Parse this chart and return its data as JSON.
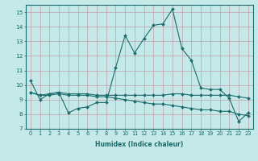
{
  "xlabel": "Humidex (Indice chaleur)",
  "background_color": "#c5e8e8",
  "grid_color": "#c0a0a8",
  "line_color": "#1a6b6b",
  "xlim": [
    -0.5,
    23.5
  ],
  "ylim": [
    7,
    15.5
  ],
  "yticks": [
    7,
    8,
    9,
    10,
    11,
    12,
    13,
    14,
    15
  ],
  "xticks": [
    0,
    1,
    2,
    3,
    4,
    5,
    6,
    7,
    8,
    9,
    10,
    11,
    12,
    13,
    14,
    15,
    16,
    17,
    18,
    19,
    20,
    21,
    22,
    23
  ],
  "series1_x": [
    0,
    1,
    2,
    3,
    4,
    5,
    6,
    7,
    8,
    9,
    10,
    11,
    12,
    13,
    14,
    15,
    16,
    17,
    18,
    19,
    20,
    21,
    22,
    23
  ],
  "series1_y": [
    10.3,
    9.0,
    9.4,
    9.5,
    8.1,
    8.4,
    8.5,
    8.8,
    8.8,
    11.2,
    13.4,
    12.2,
    13.2,
    14.1,
    14.2,
    15.2,
    12.5,
    11.7,
    9.8,
    9.7,
    9.7,
    9.1,
    7.5,
    8.1
  ],
  "series2_x": [
    0,
    1,
    2,
    3,
    4,
    5,
    6,
    7,
    8,
    9,
    10,
    11,
    12,
    13,
    14,
    15,
    16,
    17,
    18,
    19,
    20,
    21,
    22,
    23
  ],
  "series2_y": [
    9.5,
    9.3,
    9.4,
    9.5,
    9.4,
    9.4,
    9.4,
    9.3,
    9.3,
    9.3,
    9.3,
    9.3,
    9.3,
    9.3,
    9.3,
    9.4,
    9.4,
    9.3,
    9.3,
    9.3,
    9.3,
    9.3,
    9.2,
    9.1
  ],
  "series3_x": [
    0,
    1,
    2,
    3,
    4,
    5,
    6,
    7,
    8,
    9,
    10,
    11,
    12,
    13,
    14,
    15,
    16,
    17,
    18,
    19,
    20,
    21,
    22,
    23
  ],
  "series3_y": [
    9.5,
    9.3,
    9.3,
    9.4,
    9.3,
    9.3,
    9.3,
    9.2,
    9.2,
    9.1,
    9.0,
    8.9,
    8.8,
    8.7,
    8.7,
    8.6,
    8.5,
    8.4,
    8.3,
    8.3,
    8.2,
    8.2,
    8.0,
    7.9
  ],
  "marker": "D",
  "markersize": 2.0,
  "linewidth": 0.8,
  "xlabel_fontsize": 5.5,
  "tick_fontsize": 4.8
}
